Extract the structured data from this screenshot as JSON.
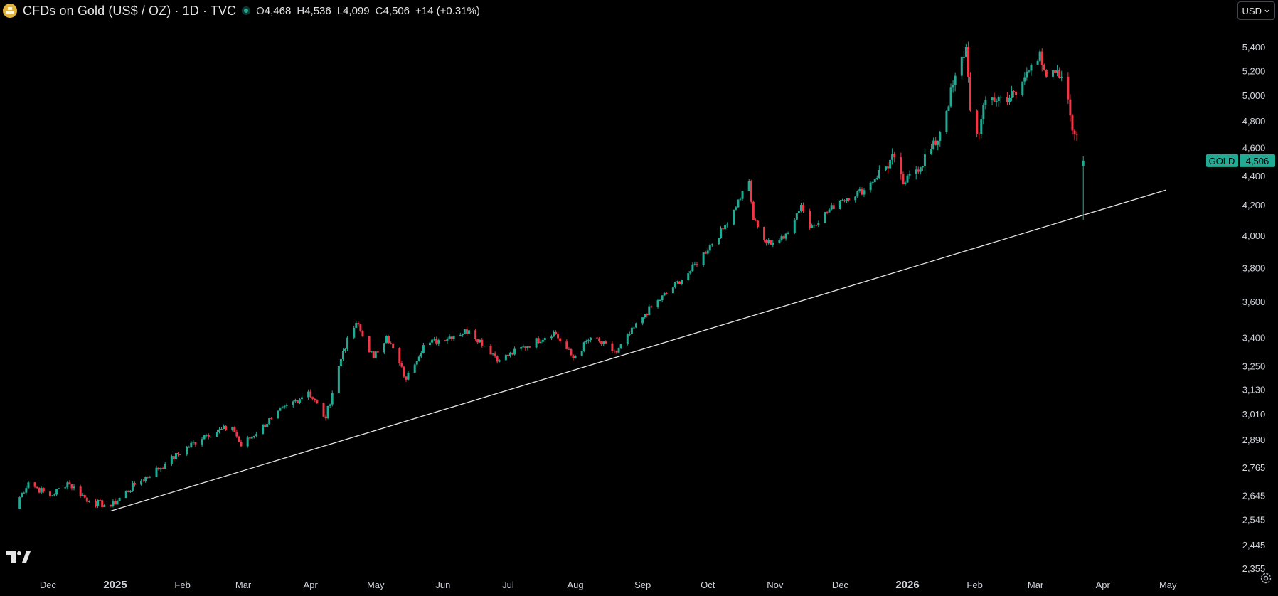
{
  "header": {
    "title": "CFDs on Gold (US$ / OZ) · 1D · TVC",
    "ohlc": [
      {
        "label": "O",
        "value": "4,468"
      },
      {
        "label": "H",
        "value": "4,536"
      },
      {
        "label": "L",
        "value": "4,099"
      },
      {
        "label": "C",
        "value": "4,506"
      }
    ],
    "change": "+14 (+0.31%)"
  },
  "currency_button": {
    "label": "USD"
  },
  "price_badge": {
    "symbol": "GOLD",
    "price": "4,506"
  },
  "colors": {
    "up": "#22ab94",
    "down": "#f23645",
    "background": "#000000",
    "trendline": "#e6e6e6",
    "axis_text": "#d1d4dc"
  },
  "chart_data": {
    "type": "candlestick",
    "symbol": "GOLD",
    "last_price": 4506,
    "y_axis": {
      "scale": "log",
      "ticks": [
        5400,
        5200,
        5000,
        4800,
        4600,
        4400,
        4200,
        4000,
        3800,
        3600,
        3400,
        3250,
        3130,
        3010,
        2890,
        2765,
        2645,
        2545,
        2445,
        2355
      ],
      "tick_labels": [
        "5,400",
        "5,200",
        "5,000",
        "4,800",
        "4,600",
        "4,400",
        "4,200",
        "4,000",
        "3,800",
        "3,600",
        "3,400",
        "3,250",
        "3,130",
        "3,010",
        "2,890",
        "2,765",
        "2,645",
        "2,545",
        "2,445",
        "2,355"
      ]
    },
    "x_axis": {
      "labels": [
        "Dec",
        "2025",
        "Feb",
        "Mar",
        "Apr",
        "May",
        "Jun",
        "Jul",
        "Aug",
        "Sep",
        "Oct",
        "Nov",
        "Dec",
        "2026",
        "Feb",
        "Mar",
        "Apr",
        "May"
      ],
      "bold": [
        "2025",
        "2026"
      ]
    },
    "trendline": {
      "start": {
        "date": "2024-12-30",
        "price": 2580
      },
      "end": {
        "date": "2026-04-30",
        "price": 4300
      }
    },
    "anchors": [
      [
        "2024-11-15",
        2590
      ],
      [
        "2024-11-22",
        2700
      ],
      [
        "2024-12-02",
        2640
      ],
      [
        "2024-12-10",
        2700
      ],
      [
        "2024-12-20",
        2620
      ],
      [
        "2024-12-30",
        2600
      ],
      [
        "2025-01-10",
        2690
      ],
      [
        "2025-01-24",
        2780
      ],
      [
        "2025-02-11",
        2910
      ],
      [
        "2025-02-24",
        2950
      ],
      [
        "2025-02-28",
        2860
      ],
      [
        "2025-03-14",
        2990
      ],
      [
        "2025-03-31",
        3120
      ],
      [
        "2025-04-08",
        2990
      ],
      [
        "2025-04-16",
        3330
      ],
      [
        "2025-04-22",
        3480
      ],
      [
        "2025-04-30",
        3290
      ],
      [
        "2025-05-06",
        3410
      ],
      [
        "2025-05-15",
        3180
      ],
      [
        "2025-05-23",
        3360
      ],
      [
        "2025-06-13",
        3440
      ],
      [
        "2025-06-27",
        3280
      ],
      [
        "2025-07-22",
        3430
      ],
      [
        "2025-07-31",
        3290
      ],
      [
        "2025-08-08",
        3400
      ],
      [
        "2025-08-20",
        3320
      ],
      [
        "2025-09-02",
        3530
      ],
      [
        "2025-09-23",
        3780
      ],
      [
        "2025-10-08",
        4040
      ],
      [
        "2025-10-20",
        4360
      ],
      [
        "2025-10-22",
        4100
      ],
      [
        "2025-10-28",
        3950
      ],
      [
        "2025-11-05",
        3980
      ],
      [
        "2025-11-13",
        4200
      ],
      [
        "2025-11-17",
        4050
      ],
      [
        "2025-12-01",
        4230
      ],
      [
        "2025-12-12",
        4300
      ],
      [
        "2025-12-26",
        4530
      ],
      [
        "2025-12-30",
        4340
      ],
      [
        "2026-01-14",
        4620
      ],
      [
        "2026-01-28",
        5400
      ],
      [
        "2026-01-30",
        4880
      ],
      [
        "2026-02-03",
        4700
      ],
      [
        "2026-02-06",
        4960
      ],
      [
        "2026-02-20",
        5000
      ],
      [
        "2026-02-27",
        5250
      ],
      [
        "2026-03-03",
        5360
      ],
      [
        "2026-03-06",
        5150
      ],
      [
        "2026-03-13",
        5150
      ],
      [
        "2026-03-19",
        4700
      ],
      [
        "2026-03-23",
        4506
      ]
    ]
  }
}
